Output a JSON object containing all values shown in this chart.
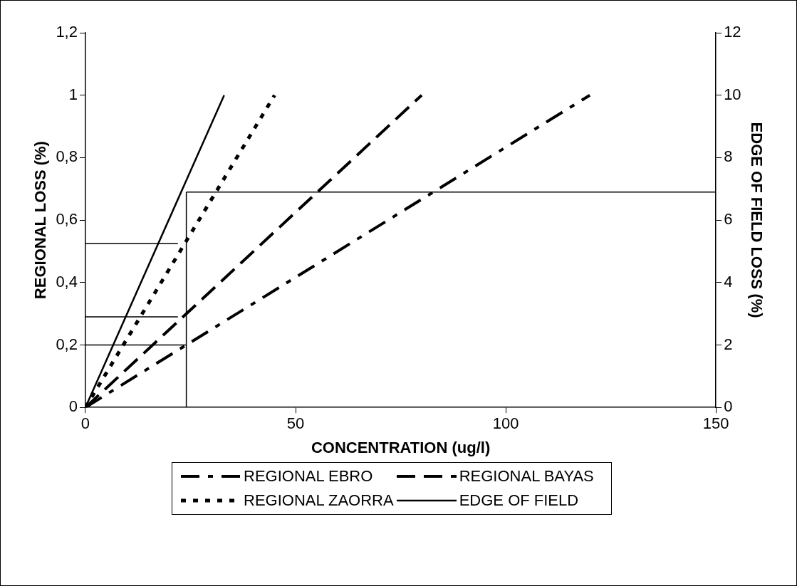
{
  "chart_data": {
    "type": "line",
    "xlabel": "CONCENTRATION (ug/l)",
    "ylabel": "REGIONAL LOSS (%)",
    "y2label": "EDGE OF FIELD LOSS (%)",
    "xlim": [
      0,
      150
    ],
    "xticks": [
      0,
      50,
      100,
      150
    ],
    "ylim": [
      0,
      1.2
    ],
    "yticks": [
      0,
      {
        "value": 0.2,
        "label": "0,2"
      },
      {
        "value": 0.4,
        "label": "0,4"
      },
      {
        "value": 0.6,
        "label": "0,6"
      },
      {
        "value": 0.8,
        "label": "0,8"
      },
      1,
      {
        "value": 1.2,
        "label": "1,2"
      }
    ],
    "y2lim": [
      0,
      12
    ],
    "y2ticks": [
      0,
      2,
      4,
      6,
      8,
      10,
      12
    ],
    "grid": false,
    "legend": "bottom",
    "marker": "none",
    "series": [
      {
        "name": "REGIONAL EBRO",
        "color": "#000000",
        "line_style": "dashdot",
        "x": [
          0,
          120
        ],
        "values": [
          0,
          1
        ]
      },
      {
        "name": "REGIONAL BAYAS",
        "color": "#000000",
        "line_style": "dashed",
        "x": [
          0,
          80
        ],
        "values": [
          0,
          1
        ]
      },
      {
        "name": "REGIONAL ZAORRA",
        "color": "#000000",
        "line_style": "dotted",
        "x": [
          0,
          45
        ],
        "values": [
          0,
          1
        ]
      },
      {
        "name": "EDGE OF FIELD",
        "color": "#000000",
        "line_style": "solid",
        "axis": "y2",
        "x": [
          0,
          33
        ],
        "values": [
          0,
          10
        ]
      },
      {
        "color": "#000000",
        "line_style": "solid",
        "x": [
          0,
          22
        ],
        "values": [
          0.525,
          0.525
        ]
      },
      {
        "color": "#000000",
        "line_style": "solid",
        "x": [
          0,
          22
        ],
        "values": [
          0.29,
          0.29
        ]
      },
      {
        "color": "#000000",
        "line_style": "solid",
        "x": [
          0,
          24
        ],
        "values": [
          0.2,
          0.2
        ]
      },
      {
        "color": "#000000",
        "line_style": "solid",
        "x": [
          24,
          24
        ],
        "values": [
          0,
          0.69
        ]
      },
      {
        "color": "#000000",
        "line_style": "solid",
        "x": [
          24,
          150
        ],
        "values": [
          0.69,
          0.69
        ]
      }
    ]
  }
}
